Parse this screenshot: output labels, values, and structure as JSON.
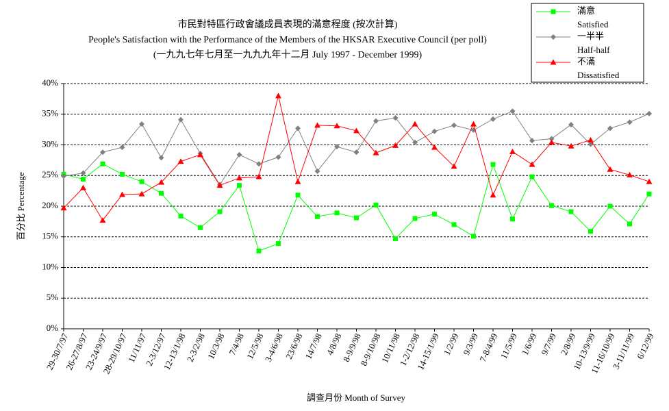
{
  "chart_data": {
    "type": "line",
    "title": "市民對特區行政會議成員表現的滿意程度 (按次計算)",
    "subtitle": "People's Satisfaction with the Performance of the Members of the HKSAR Executive Council (per poll)",
    "subtitle2": "(一九九七年七月至一九九九年十二月 July 1997 -  December 1999)",
    "ylabel": "百分比 Percentage",
    "xlabel": "調查月份 Month of Survey",
    "categories": [
      "29-30/7/97",
      "26-27/8/97",
      "23-24/9/97",
      "28-29/10/97",
      "11/11/97",
      "2-3/12/97",
      "12-13/1/98",
      "2-3/2/98",
      "10/3/98",
      "7/4/98",
      "12/5/98",
      "3-4/6/98",
      "23/6/98",
      "14/7/98",
      "4/8/98",
      "8-9/9/98",
      "8-9/10/98",
      "10/11/98",
      "1-2/12/98",
      "14-15/1/99",
      "1/2/99",
      "9/3/99",
      "7-8/4/99",
      "11/5/99",
      "1/6/99",
      "9/7/99",
      "2/8/99",
      "10-13/9/99",
      "11-16/10/99",
      "3-11/11/99",
      "6/12/99"
    ],
    "series": [
      {
        "name": "滿意",
        "name_en": "Satisfied",
        "color": "#00ff00",
        "marker": "square",
        "values": [
          25.2,
          24.4,
          26.9,
          25.2,
          24.0,
          22.1,
          18.4,
          16.5,
          19.1,
          23.4,
          12.7,
          13.9,
          21.8,
          18.3,
          18.9,
          18.1,
          20.2,
          14.7,
          18.0,
          18.7,
          17.0,
          15.1,
          26.8,
          17.9,
          24.8,
          20.1,
          19.1,
          15.9,
          20.0,
          17.1,
          22.0
        ]
      },
      {
        "name": "一半半",
        "name_en": "Half-half",
        "color": "#808080",
        "marker": "diamond",
        "values": [
          24.9,
          25.4,
          28.8,
          29.6,
          33.4,
          27.9,
          34.1,
          28.6,
          23.5,
          28.4,
          26.9,
          28.0,
          32.7,
          25.7,
          29.7,
          28.8,
          33.9,
          34.4,
          30.4,
          32.2,
          33.2,
          32.4,
          34.2,
          35.5,
          30.7,
          31.0,
          33.3,
          30.1,
          32.7,
          33.7,
          35.1
        ]
      },
      {
        "name": "不滿",
        "name_en": "Dissatisfied",
        "color": "#ff0000",
        "marker": "triangle",
        "values": [
          19.7,
          23.0,
          17.7,
          21.9,
          22.0,
          23.9,
          27.3,
          28.4,
          23.4,
          24.6,
          24.8,
          38.0,
          24.0,
          33.2,
          33.1,
          32.3,
          28.7,
          29.9,
          33.4,
          29.6,
          26.5,
          33.4,
          21.8,
          28.9,
          26.8,
          30.4,
          29.8,
          30.8,
          26.0,
          25.1,
          24.0
        ]
      }
    ],
    "ylim": [
      0,
      40
    ],
    "yticks": [
      {
        "value": 0,
        "label": "0%"
      },
      {
        "value": 5,
        "label": "5%"
      },
      {
        "value": 10,
        "label": "10%"
      },
      {
        "value": 15,
        "label": "15%"
      },
      {
        "value": 20,
        "label": "20%"
      },
      {
        "value": 25,
        "label": "25%"
      },
      {
        "value": 30,
        "label": "30%"
      },
      {
        "value": 35,
        "label": "35%"
      },
      {
        "value": 40,
        "label": "40%"
      }
    ],
    "grid": true,
    "legend": "top-right"
  }
}
